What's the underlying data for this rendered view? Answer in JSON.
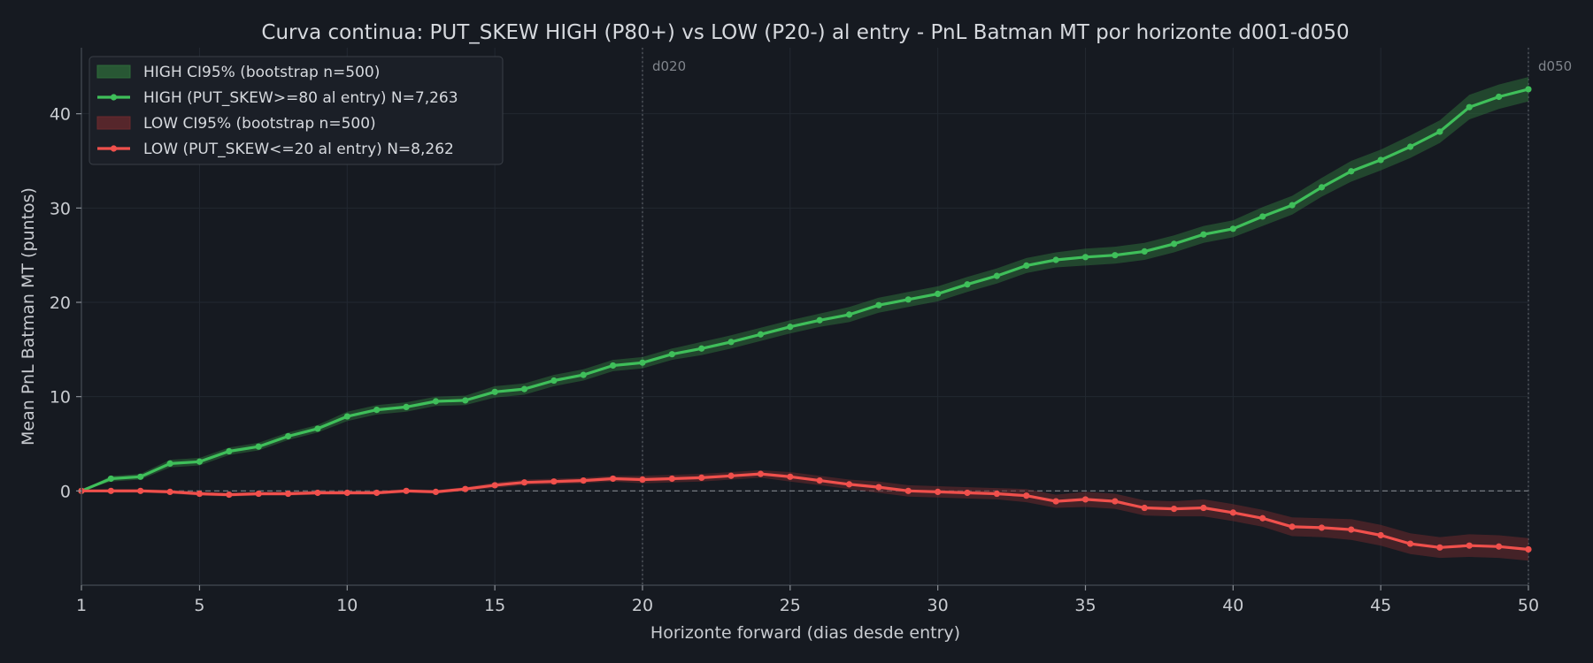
{
  "chart_data": {
    "type": "line",
    "title": "Curva continua: PUT_SKEW HIGH (P80+) vs LOW (P20-) al entry  -  PnL Batman MT por horizonte d001-d050",
    "xlabel": "Horizonte forward (dias desde entry)",
    "ylabel": "Mean PnL Batman MT (puntos)",
    "xlim": [
      1,
      50
    ],
    "ylim": [
      -10,
      47
    ],
    "xticks": [
      1,
      5,
      10,
      15,
      20,
      25,
      30,
      35,
      40,
      45,
      50
    ],
    "yticks": [
      0,
      10,
      20,
      30,
      40
    ],
    "grid": true,
    "legend_position": "top-left",
    "reference_lines": [
      {
        "axis": "y",
        "value": 0,
        "style": "dashed"
      },
      {
        "axis": "x",
        "value": 20,
        "label": "d020",
        "style": "dotted"
      },
      {
        "axis": "x",
        "value": 50,
        "label": "d050",
        "style": "dotted"
      }
    ],
    "x": [
      1,
      2,
      3,
      4,
      5,
      6,
      7,
      8,
      9,
      10,
      11,
      12,
      13,
      14,
      15,
      16,
      17,
      18,
      19,
      20,
      21,
      22,
      23,
      24,
      25,
      26,
      27,
      28,
      29,
      30,
      31,
      32,
      33,
      34,
      35,
      36,
      37,
      38,
      39,
      40,
      41,
      42,
      43,
      44,
      45,
      46,
      47,
      48,
      49,
      50
    ],
    "series": [
      {
        "name": "HIGH (PUT_SKEW>=80 al entry)  N=7,263",
        "band_name": "HIGH CI95% (bootstrap n=500)",
        "color": "#3fbf5a",
        "band_color": "#2e6b3a",
        "values": [
          0.0,
          1.3,
          1.5,
          2.9,
          3.1,
          4.2,
          4.7,
          5.8,
          6.6,
          7.9,
          8.6,
          8.9,
          9.5,
          9.6,
          10.5,
          10.8,
          11.7,
          12.3,
          13.3,
          13.6,
          14.5,
          15.1,
          15.8,
          16.6,
          17.4,
          18.1,
          18.7,
          19.7,
          20.3,
          20.9,
          21.9,
          22.8,
          23.9,
          24.5,
          24.8,
          25.0,
          25.4,
          26.2,
          27.2,
          27.8,
          29.1,
          30.3,
          32.2,
          33.9,
          35.1,
          36.5,
          38.1,
          40.7,
          41.8,
          42.6
        ],
        "ci_lower": [
          0.0,
          1.0,
          1.2,
          2.5,
          2.7,
          3.8,
          4.3,
          5.4,
          6.2,
          7.4,
          8.1,
          8.4,
          9.0,
          9.1,
          9.9,
          10.2,
          11.1,
          11.7,
          12.7,
          13.0,
          13.9,
          14.4,
          15.1,
          15.9,
          16.7,
          17.4,
          17.9,
          18.9,
          19.5,
          20.1,
          21.1,
          22.0,
          23.1,
          23.7,
          23.9,
          24.1,
          24.5,
          25.3,
          26.3,
          26.9,
          28.1,
          29.3,
          31.2,
          32.8,
          34.0,
          35.3,
          36.9,
          39.4,
          40.5,
          41.3
        ],
        "ci_upper": [
          0.0,
          1.6,
          1.8,
          3.3,
          3.5,
          4.6,
          5.1,
          6.2,
          7.0,
          8.4,
          9.1,
          9.4,
          10.0,
          10.1,
          11.1,
          11.4,
          12.3,
          12.9,
          13.9,
          14.2,
          15.1,
          15.8,
          16.5,
          17.3,
          18.1,
          18.8,
          19.5,
          20.5,
          21.1,
          21.7,
          22.7,
          23.6,
          24.7,
          25.3,
          25.7,
          25.9,
          26.3,
          27.1,
          28.1,
          28.7,
          30.1,
          31.3,
          33.2,
          35.0,
          36.2,
          37.7,
          39.3,
          42.0,
          43.1,
          43.9
        ]
      },
      {
        "name": "LOW (PUT_SKEW<=20 al entry)  N=8,262",
        "band_name": "LOW CI95% (bootstrap n=500)",
        "color": "#f0504c",
        "band_color": "#6b2a2d",
        "values": [
          0.0,
          0.0,
          0.0,
          -0.1,
          -0.3,
          -0.4,
          -0.3,
          -0.3,
          -0.2,
          -0.2,
          -0.2,
          0.0,
          -0.1,
          0.2,
          0.6,
          0.9,
          1.0,
          1.1,
          1.3,
          1.2,
          1.3,
          1.4,
          1.6,
          1.8,
          1.5,
          1.1,
          0.7,
          0.4,
          0.0,
          -0.1,
          -0.2,
          -0.3,
          -0.5,
          -1.1,
          -0.9,
          -1.1,
          -1.8,
          -1.9,
          -1.8,
          -2.3,
          -2.9,
          -3.8,
          -3.9,
          -4.1,
          -4.7,
          -5.6,
          -6.0,
          -5.8,
          -5.9,
          -6.2
        ],
        "ci_lower": [
          0.0,
          -0.2,
          -0.2,
          -0.3,
          -0.5,
          -0.6,
          -0.5,
          -0.5,
          -0.4,
          -0.4,
          -0.4,
          -0.2,
          -0.3,
          0.0,
          0.3,
          0.6,
          0.7,
          0.8,
          1.0,
          0.8,
          0.9,
          1.0,
          1.2,
          1.4,
          1.0,
          0.6,
          0.2,
          -0.2,
          -0.6,
          -0.7,
          -0.8,
          -0.9,
          -1.2,
          -1.8,
          -1.7,
          -1.9,
          -2.6,
          -2.7,
          -2.7,
          -3.2,
          -3.8,
          -4.8,
          -4.9,
          -5.2,
          -5.8,
          -6.7,
          -7.1,
          -7.0,
          -7.1,
          -7.4
        ],
        "ci_upper": [
          0.0,
          0.2,
          0.2,
          0.1,
          -0.1,
          -0.2,
          -0.1,
          -0.1,
          0.0,
          0.0,
          0.0,
          0.2,
          0.1,
          0.4,
          0.9,
          1.2,
          1.3,
          1.4,
          1.6,
          1.6,
          1.7,
          1.8,
          2.0,
          2.2,
          2.0,
          1.6,
          1.2,
          1.0,
          0.6,
          0.5,
          0.4,
          0.3,
          0.2,
          -0.4,
          -0.1,
          -0.3,
          -1.0,
          -1.1,
          -0.9,
          -1.4,
          -2.0,
          -2.8,
          -2.9,
          -3.0,
          -3.6,
          -4.5,
          -4.9,
          -4.6,
          -4.7,
          -5.0
        ]
      }
    ]
  }
}
